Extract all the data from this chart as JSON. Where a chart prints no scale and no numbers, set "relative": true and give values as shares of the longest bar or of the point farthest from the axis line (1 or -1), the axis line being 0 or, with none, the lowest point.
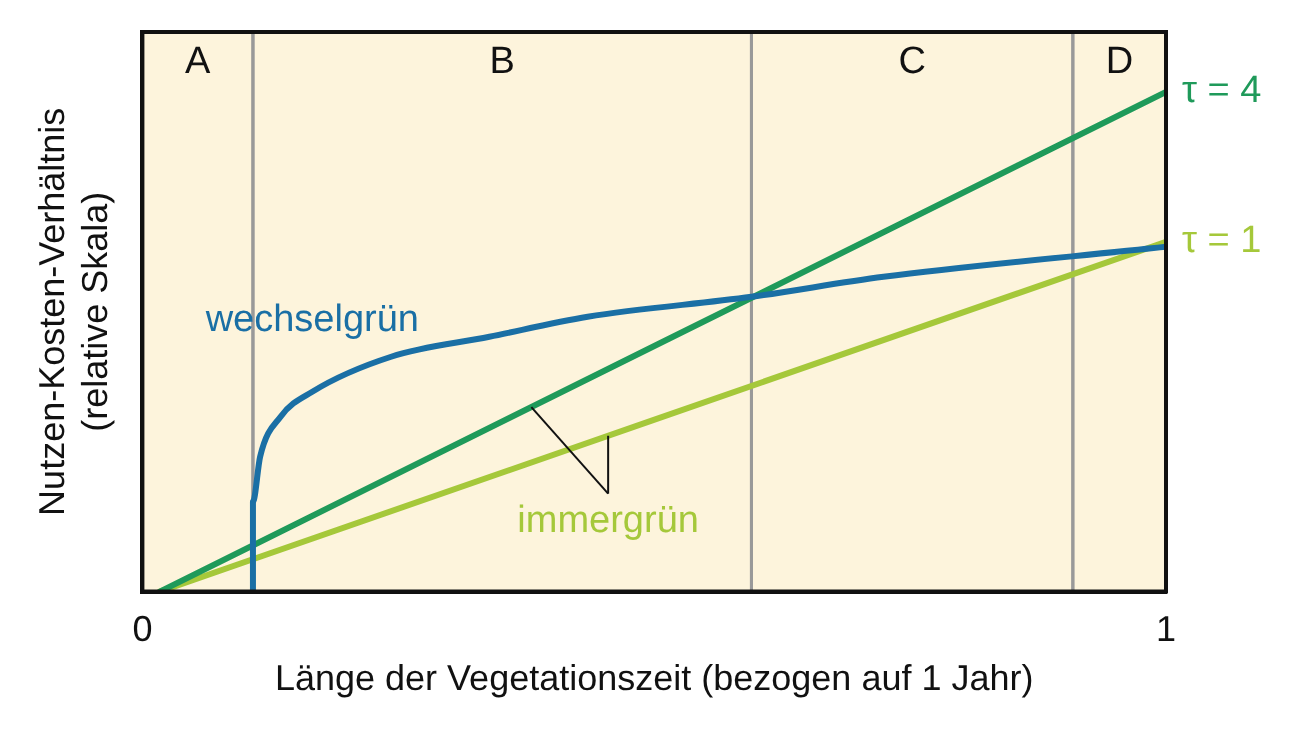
{
  "chart_data": {
    "type": "line",
    "relative": true,
    "xlabel": "Länge der Vegetationszeit (bezogen auf 1 Jahr)",
    "ylabel": "Nutzen-Kosten-Verhältnis\n(relative Skala)",
    "xlim": [
      0,
      1
    ],
    "xticks": [
      0,
      1
    ],
    "tick_labels": "x",
    "grid": false,
    "legend": false,
    "marker": "none",
    "line_style": "solid",
    "series": [
      {
        "name": "wechselgrün",
        "color": "#1a6fa5",
        "x": [
          0.108,
          0.108,
          0.115,
          0.135,
          0.166,
          0.243,
          0.339,
          0.435,
          0.595,
          0.724,
          1
        ],
        "values": [
          0,
          0.18,
          0.27,
          0.35,
          0.4,
          0.47,
          0.51,
          0.55,
          0.59,
          0.63,
          0.69
        ]
      },
      {
        "name": "τ = 4",
        "color": "#1f9a5a",
        "x": [
          0.017,
          1
        ],
        "values": [
          0,
          1
        ]
      },
      {
        "name": "τ = 1",
        "color": "#a5c83a",
        "x": [
          0.017,
          1
        ],
        "values": [
          0,
          0.7
        ]
      }
    ],
    "bands": [
      {
        "axis": "x",
        "from": 0,
        "to": 0.108,
        "label": "A",
        "color": "#fdf4dc"
      },
      {
        "axis": "x",
        "from": 0.108,
        "to": 0.595,
        "label": "B",
        "color": "#fdf4dc"
      },
      {
        "axis": "x",
        "from": 0.595,
        "to": 0.909,
        "label": "C",
        "color": "#fdf4dc"
      },
      {
        "axis": "x",
        "from": 0.909,
        "to": 1,
        "label": "D",
        "color": "#fdf4dc"
      }
    ],
    "annotations": [
      "immergrün"
    ]
  }
}
